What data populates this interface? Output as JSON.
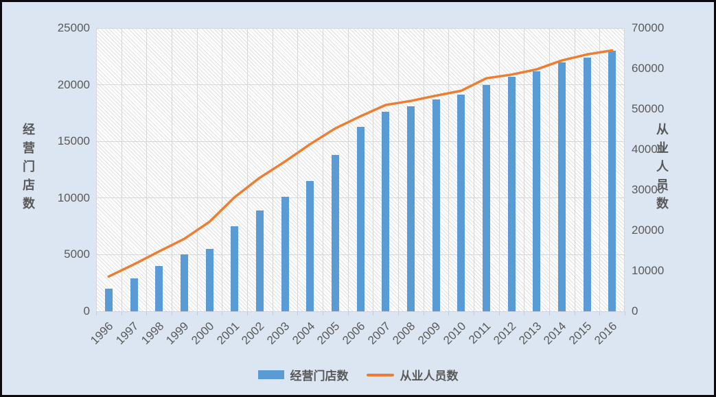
{
  "chart_data": {
    "type": "bar",
    "combo": "bar+line",
    "categories": [
      "1996",
      "1997",
      "1998",
      "1999",
      "2000",
      "2001",
      "2002",
      "2003",
      "2004",
      "2005",
      "2006",
      "2007",
      "2008",
      "2009",
      "2010",
      "2011",
      "2012",
      "2013",
      "2014",
      "2015",
      "2016"
    ],
    "series": [
      {
        "name": "经营门店数",
        "type": "bar",
        "axis": "left",
        "color": "#5B9BD5",
        "values": [
          2000,
          2900,
          4000,
          5000,
          5500,
          7500,
          8900,
          10100,
          11500,
          13800,
          16300,
          17600,
          18100,
          18700,
          19100,
          20000,
          20700,
          21200,
          22000,
          22400,
          23000
        ]
      },
      {
        "name": "从业人员数",
        "type": "line",
        "axis": "right",
        "color": "#ED7D31",
        "values": [
          8600,
          11600,
          14800,
          17900,
          22100,
          28200,
          33000,
          37000,
          41300,
          45200,
          48200,
          51000,
          52000,
          53300,
          54500,
          57600,
          58500,
          59800,
          62000,
          63500,
          64500
        ]
      }
    ],
    "left_axis": {
      "title": "经营门店数",
      "min": 0,
      "max": 25000,
      "step": 5000,
      "ticks": [
        0,
        5000,
        10000,
        15000,
        20000,
        25000
      ]
    },
    "right_axis": {
      "title": "从业人员数",
      "min": 0,
      "max": 70000,
      "step": 10000,
      "ticks": [
        0,
        10000,
        20000,
        30000,
        40000,
        50000,
        60000,
        70000
      ]
    },
    "legend": {
      "position": "bottom",
      "entries": [
        "经营门店数",
        "从业人员数"
      ]
    },
    "grid": {
      "horizontal": true,
      "vertical": true,
      "color": "#D9D9D9"
    },
    "plot_style": {
      "fill": "#FFFFFF",
      "hatch": "light-diagonal",
      "hatch_color": "#C9C9C9"
    },
    "background_color": "#DCE6F2",
    "border_color": "#000000",
    "text_color": "#595959"
  }
}
